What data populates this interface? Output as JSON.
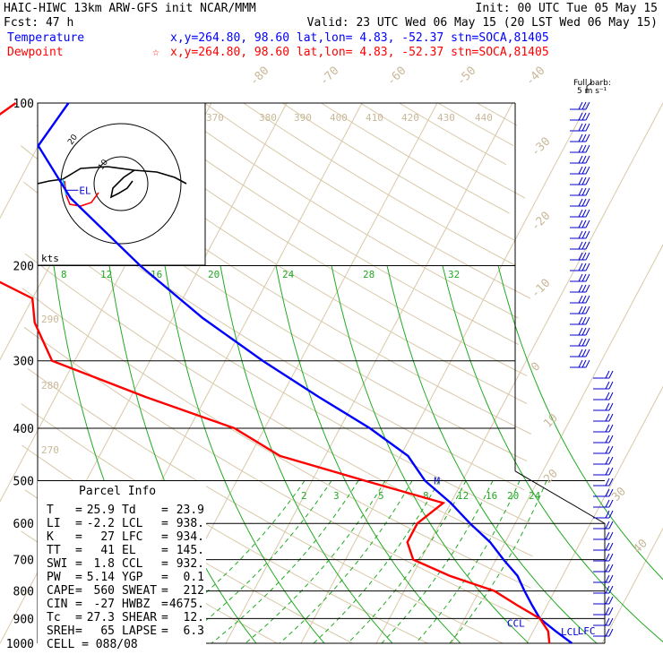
{
  "header": {
    "left1": "HAIC-HIWC 13km ARW-GFS init   NCAR/MMM",
    "right1": "Init: 00 UTC Tue 05 May 15",
    "left2": "Fcst:   47 h",
    "right2": "Valid: 23 UTC Wed 06 May 15 (20 LST Wed 06 May 15)",
    "temperature_label": "Temperature",
    "dewpoint_label": "Dewpoint",
    "temperature_info": "x,y=264.80, 98.60   lat,lon=  4.83, -52.37   stn=SOCA,81405",
    "dewpoint_info": "x,y=264.80, 98.60   lat,lon=  4.83, -52.37   stn=SOCA,81405",
    "dewpoint_marker": "☆",
    "temperature_color": "#0000ff",
    "dewpoint_color": "#ff0000"
  },
  "barb_legend": {
    "line1": "Full barb:",
    "line2": "5 m s⁻¹"
  },
  "hodograph": {
    "units_label": "kts",
    "ring_labels": [
      "20",
      "10"
    ]
  },
  "parcel_info": {
    "title": "Parcel Info",
    "rows": [
      {
        "l": "T",
        "lv": "25.9",
        "r": "Td",
        "rv": "23.9"
      },
      {
        "l": "LI",
        "lv": "-2.2",
        "r": "LCL",
        "rv": "938."
      },
      {
        "l": "K",
        "lv": "27",
        "r": "LFC",
        "rv": "934."
      },
      {
        "l": "TT",
        "lv": "41",
        "r": "EL",
        "rv": "145."
      },
      {
        "l": "SWI",
        "lv": "1.8",
        "r": "CCL",
        "rv": "932."
      },
      {
        "l": "PW",
        "lv": "5.14",
        "r": "YGP",
        "rv": "0.1"
      },
      {
        "l": "CAPE",
        "lv": "560",
        "r": "SWEAT",
        "rv": "212"
      },
      {
        "l": "CIN",
        "lv": "-27",
        "r": "HWBZ",
        "rv": "4675."
      },
      {
        "l": "Tc",
        "lv": "27.3",
        "r": "SHEAR",
        "rv": "12."
      },
      {
        "l": "SREH",
        "lv": "65",
        "r": "LAPSE",
        "rv": "6.3"
      }
    ],
    "cell_label": "CELL = 088/08"
  },
  "chart_data": {
    "type": "skew-t log-p",
    "pressure_levels": [
      100,
      200,
      300,
      400,
      500,
      600,
      700,
      800,
      900,
      1000
    ],
    "ylim": [
      1000,
      100
    ],
    "isotherm_labels": [
      "-80",
      "-70",
      "-60",
      "-50",
      "-40",
      "-30",
      "-20",
      "-10",
      "0",
      "10",
      "20",
      "30",
      "40"
    ],
    "theta_labels": [
      "370",
      "380",
      "390",
      "400",
      "410",
      "420",
      "430",
      "440"
    ],
    "theta_left_labels": [
      "290",
      "280",
      "270"
    ],
    "mixing_ratio_labels_upper": [
      "8",
      "12",
      "16",
      "20",
      "24",
      "28",
      "32"
    ],
    "mixing_ratio_labels_lower": [
      "2",
      "3",
      "5",
      "8",
      "12",
      "16",
      "20",
      "24"
    ],
    "series": [
      {
        "name": "Temperature",
        "color": "#0000ff",
        "points": [
          {
            "p": 100,
            "t": -79
          },
          {
            "p": 120,
            "t": -80
          },
          {
            "p": 150,
            "t": -72
          },
          {
            "p": 200,
            "t": -58
          },
          {
            "p": 250,
            "t": -46
          },
          {
            "p": 300,
            "t": -35
          },
          {
            "p": 350,
            "t": -25
          },
          {
            "p": 400,
            "t": -16
          },
          {
            "p": 450,
            "t": -9
          },
          {
            "p": 500,
            "t": -5
          },
          {
            "p": 550,
            "t": 0
          },
          {
            "p": 600,
            "t": 4
          },
          {
            "p": 650,
            "t": 8
          },
          {
            "p": 700,
            "t": 11
          },
          {
            "p": 750,
            "t": 14
          },
          {
            "p": 800,
            "t": 16
          },
          {
            "p": 850,
            "t": 18
          },
          {
            "p": 900,
            "t": 20
          },
          {
            "p": 950,
            "t": 23
          },
          {
            "p": 1000,
            "t": 26
          }
        ]
      },
      {
        "name": "Dewpoint",
        "color": "#ff0000",
        "points": [
          {
            "p": 100,
            "t": -86
          },
          {
            "p": 120,
            "t": -91
          },
          {
            "p": 150,
            "t": -88
          },
          {
            "p": 200,
            "t": -81
          },
          {
            "p": 230,
            "t": -70
          },
          {
            "p": 255,
            "t": -68
          },
          {
            "p": 300,
            "t": -63
          },
          {
            "p": 350,
            "t": -48
          },
          {
            "p": 400,
            "t": -34
          },
          {
            "p": 450,
            "t": -26
          },
          {
            "p": 500,
            "t": -13
          },
          {
            "p": 550,
            "t": -1
          },
          {
            "p": 600,
            "t": -3
          },
          {
            "p": 650,
            "t": -3
          },
          {
            "p": 700,
            "t": -1
          },
          {
            "p": 750,
            "t": 5
          },
          {
            "p": 800,
            "t": 12
          },
          {
            "p": 850,
            "t": 16
          },
          {
            "p": 900,
            "t": 20
          },
          {
            "p": 950,
            "t": 22
          },
          {
            "p": 1000,
            "t": 23
          }
        ]
      }
    ],
    "annotations": [
      {
        "label": "EL",
        "p": 145
      },
      {
        "label": "M",
        "p": 500
      },
      {
        "label": "CCL",
        "p": 932
      },
      {
        "label": "LCL",
        "p": 938
      },
      {
        "label": "LFC",
        "p": 934
      }
    ]
  }
}
